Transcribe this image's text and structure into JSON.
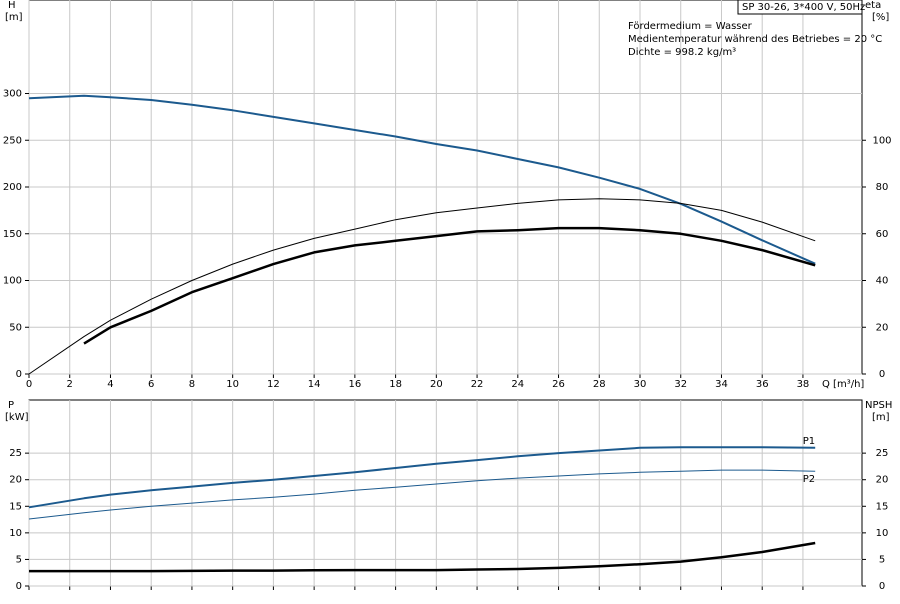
{
  "chart_data": [
    {
      "type": "line",
      "ylabel": "H",
      "yunit": "[m]",
      "y2label": "eta",
      "y2unit": "[%]",
      "xlabel": "Q [m³/h]",
      "model": "SP 30-26, 3*400 V, 50Hz",
      "annotations": [
        "Fördermedium = Wasser",
        "Medientemperatur während des Betriebes = 20 °C",
        "Dichte = 998.2 kg/m³"
      ],
      "x": [
        0,
        2.7,
        4,
        6,
        8,
        10,
        12,
        14,
        16,
        18,
        20,
        22,
        24,
        26,
        28,
        30,
        32,
        34,
        36,
        38.6
      ],
      "xlim": [
        0,
        40.9
      ],
      "xticks": [
        0,
        2,
        4,
        6,
        8,
        10,
        12,
        14,
        16,
        18,
        20,
        22,
        24,
        26,
        28,
        30,
        32,
        34,
        36,
        38
      ],
      "ylim": [
        0,
        400
      ],
      "yticks": [
        0,
        50,
        100,
        150,
        200,
        250,
        300
      ],
      "y2lim": [
        0,
        160
      ],
      "y2ticks": [
        0,
        20,
        40,
        60,
        80,
        100
      ],
      "grid": true,
      "series": [
        {
          "color": "#1c5a8e",
          "values": [
            295,
            297.5,
            296,
            293,
            288,
            282,
            275,
            268,
            261,
            254,
            246,
            239,
            230,
            221,
            210,
            198,
            182,
            163,
            143,
            118
          ]
        },
        {
          "color": "#000000",
          "axis": "y2",
          "values": [
            0,
            16,
            23,
            32,
            40,
            47,
            53,
            58,
            62,
            66,
            69,
            71,
            73,
            74.5,
            75,
            74.5,
            73,
            70,
            65,
            57
          ]
        },
        {
          "color": "#000000",
          "axis": "y2",
          "values": [
            null,
            13,
            20,
            27,
            35,
            41,
            47,
            52,
            55,
            57,
            59,
            61,
            61.5,
            62.4,
            62.4,
            61.5,
            60,
            57,
            53,
            46.5
          ]
        }
      ]
    },
    {
      "type": "line",
      "ylabel": "P",
      "yunit": "[kW]",
      "y2label": "NPSH",
      "y2unit": "[m]",
      "x": [
        0,
        2.7,
        4,
        6,
        8,
        10,
        12,
        14,
        16,
        18,
        20,
        22,
        24,
        26,
        28,
        30,
        32,
        34,
        36,
        38.6
      ],
      "xlim": [
        0,
        40.9
      ],
      "ylim": [
        0,
        35
      ],
      "yticks": [
        0,
        5,
        10,
        15,
        20,
        25
      ],
      "y2lim": [
        0,
        35
      ],
      "y2ticks": [
        0,
        5,
        10,
        15,
        20,
        25
      ],
      "grid": true,
      "series": [
        {
          "name": "P1",
          "color": "#1c5a8e",
          "values": [
            14.8,
            16.5,
            17.2,
            18,
            18.7,
            19.4,
            20,
            20.7,
            21.4,
            22.2,
            23,
            23.7,
            24.4,
            25,
            25.5,
            26,
            26.1,
            26.1,
            26.1,
            26
          ]
        },
        {
          "name": "P2",
          "color": "#1c5a8e",
          "values": [
            12.6,
            13.8,
            14.3,
            15,
            15.6,
            16.2,
            16.7,
            17.3,
            18,
            18.6,
            19.2,
            19.8,
            20.3,
            20.7,
            21.1,
            21.4,
            21.6,
            21.8,
            21.8,
            21.6
          ]
        },
        {
          "color": "#000000",
          "axis": "y2",
          "values": [
            2.8,
            2.8,
            2.8,
            2.8,
            2.85,
            2.9,
            2.9,
            2.95,
            3,
            3,
            3,
            3.1,
            3.2,
            3.4,
            3.7,
            4.1,
            4.6,
            5.4,
            6.4,
            8.1
          ]
        }
      ]
    }
  ]
}
